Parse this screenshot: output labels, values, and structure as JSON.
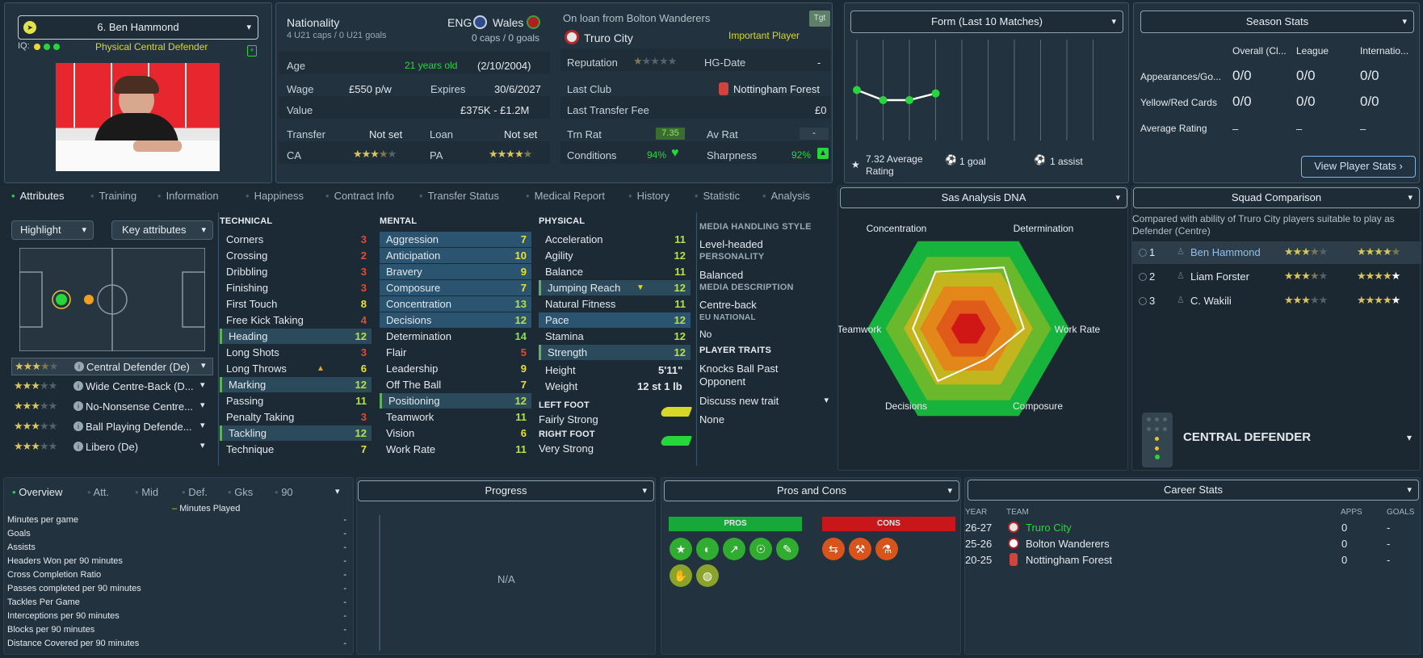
{
  "player": {
    "name": "6. Ben Hammond",
    "role": "Physical Central Defender",
    "iq_label": "IQ:"
  },
  "nationality": {
    "label": "Nationality",
    "caps_u21": "4 U21 caps / 0 U21 goals",
    "country1": "ENG",
    "country2": "Wales",
    "caps": "0 caps / 0 goals"
  },
  "loan": {
    "text": "On loan from Bolton Wanderers",
    "club": "Truro City",
    "tgt": "Tgt",
    "status": "Important Player"
  },
  "details": {
    "age_label": "Age",
    "age_value": "21 years old",
    "dob": "(2/10/2004)",
    "wage_label": "Wage",
    "wage_value": "£550 p/w",
    "expires_label": "Expires",
    "expires_value": "30/6/2027",
    "value_label": "Value",
    "value_value": "£375K - £1.2M",
    "transfer_label": "Transfer",
    "transfer_value": "Not set",
    "loan_label": "Loan",
    "loan_value": "Not set",
    "ca_label": "CA",
    "pa_label": "PA",
    "ca_stars": 3.5,
    "pa_stars": 4.5,
    "reputation_label": "Reputation",
    "reputation_stars": 0.5,
    "hg_label": "HG-Date",
    "hg_value": "-",
    "last_club_label": "Last Club",
    "last_club_value": "Nottingham Forest",
    "last_fee_label": "Last Transfer Fee",
    "last_fee_value": "£0",
    "trn_rat_label": "Trn Rat",
    "trn_rat_value": "7.35",
    "av_rat_label": "Av Rat",
    "av_rat_value": "-",
    "conditions_label": "Conditions",
    "conditions_value": "94%",
    "sharpness_label": "Sharpness",
    "sharpness_value": "92%"
  },
  "form": {
    "title": "Form (Last 10 Matches)",
    "avg": "7.32 Average Rating",
    "goals": "1 goal",
    "assists": "1 assist",
    "points": [
      7.5,
      7.2,
      7.2,
      7.4
    ]
  },
  "season": {
    "title": "Season Stats",
    "cols": [
      "Overall (Cl...",
      "League",
      "Internatio..."
    ],
    "rows": [
      {
        "label": "Appearances/Go...",
        "vals": [
          "0/0",
          "0/0",
          "0/0"
        ]
      },
      {
        "label": "Yellow/Red Cards",
        "vals": [
          "0/0",
          "0/0",
          "0/0"
        ]
      },
      {
        "label": "Average Rating",
        "vals": [
          "–",
          "–",
          "–"
        ]
      }
    ],
    "button": "View Player Stats"
  },
  "tabs": [
    "Attributes",
    "Training",
    "Information",
    "Happiness",
    "Contract Info",
    "Transfer Status",
    "Medical Report",
    "History",
    "Statistic",
    "Analysis"
  ],
  "highlight": "Highlight",
  "key_attributes": "Key attributes",
  "roles": [
    {
      "name": "Central Defender (De)",
      "stars": 3.5
    },
    {
      "name": "Wide Centre-Back (D...",
      "stars": 3
    },
    {
      "name": "No-Nonsense Centre...",
      "stars": 3
    },
    {
      "name": "Ball Playing Defende...",
      "stars": 3
    },
    {
      "name": "Libero (De)",
      "stars": 3
    }
  ],
  "technical": {
    "title": "TECHNICAL",
    "items": [
      {
        "n": "Corners",
        "v": "3"
      },
      {
        "n": "Crossing",
        "v": "2"
      },
      {
        "n": "Dribbling",
        "v": "3"
      },
      {
        "n": "Finishing",
        "v": "3"
      },
      {
        "n": "First Touch",
        "v": "8"
      },
      {
        "n": "Free Kick Taking",
        "v": "4"
      },
      {
        "n": "Heading",
        "v": "12"
      },
      {
        "n": "Long Shots",
        "v": "3"
      },
      {
        "n": "Long Throws",
        "v": "6"
      },
      {
        "n": "Marking",
        "v": "12"
      },
      {
        "n": "Passing",
        "v": "11"
      },
      {
        "n": "Penalty Taking",
        "v": "3"
      },
      {
        "n": "Tackling",
        "v": "12"
      },
      {
        "n": "Technique",
        "v": "7"
      }
    ]
  },
  "mental": {
    "title": "MENTAL",
    "items": [
      {
        "n": "Aggression",
        "v": "7"
      },
      {
        "n": "Anticipation",
        "v": "10"
      },
      {
        "n": "Bravery",
        "v": "9"
      },
      {
        "n": "Composure",
        "v": "7"
      },
      {
        "n": "Concentration",
        "v": "13"
      },
      {
        "n": "Decisions",
        "v": "12"
      },
      {
        "n": "Determination",
        "v": "14"
      },
      {
        "n": "Flair",
        "v": "5"
      },
      {
        "n": "Leadership",
        "v": "9"
      },
      {
        "n": "Off The Ball",
        "v": "7"
      },
      {
        "n": "Positioning",
        "v": "12"
      },
      {
        "n": "Teamwork",
        "v": "11"
      },
      {
        "n": "Vision",
        "v": "6"
      },
      {
        "n": "Work Rate",
        "v": "11"
      }
    ]
  },
  "physical": {
    "title": "PHYSICAL",
    "items": [
      {
        "n": "Acceleration",
        "v": "11"
      },
      {
        "n": "Agility",
        "v": "12"
      },
      {
        "n": "Balance",
        "v": "11"
      },
      {
        "n": "Jumping Reach",
        "v": "12"
      },
      {
        "n": "Natural Fitness",
        "v": "11"
      },
      {
        "n": "Pace",
        "v": "12"
      },
      {
        "n": "Stamina",
        "v": "12"
      },
      {
        "n": "Strength",
        "v": "12"
      }
    ],
    "height_label": "Height",
    "height_value": "5'11\"",
    "weight_label": "Weight",
    "weight_value": "12 st 1 lb",
    "left_foot_label": "LEFT FOOT",
    "left_foot_value": "Fairly Strong",
    "right_foot_label": "RIGHT FOOT",
    "right_foot_value": "Very Strong"
  },
  "media": {
    "handling_label": "MEDIA HANDLING STYLE",
    "handling_value": "Level-headed",
    "personality_label": "PERSONALITY",
    "personality_value": "Balanced",
    "desc_label": "MEDIA DESCRIPTION",
    "desc_value": "Centre-back",
    "eu_label": "EU NATIONAL",
    "eu_value": "No",
    "traits_label": "PLAYER TRAITS",
    "trait1": "Knocks Ball Past Opponent",
    "discuss": "Discuss new trait",
    "traits_none": "None"
  },
  "dna": {
    "title": "Sas Analysis DNA",
    "axes": [
      "Concentration",
      "Determination",
      "Work Rate",
      "Composure",
      "Decisions",
      "Teamwork"
    ],
    "values": [
      13,
      14,
      11,
      7,
      12,
      11
    ],
    "max": 20
  },
  "squad": {
    "title": "Squad Comparison",
    "subtitle": "Compared with ability of Truro City players suitable to play as Defender (Centre)",
    "rows": [
      {
        "rank": "1",
        "name": "Ben Hammond",
        "ca": 3.5,
        "pa": 4.5
      },
      {
        "rank": "2",
        "name": "Liam Forster",
        "ca": 3.5,
        "pa": 4
      },
      {
        "rank": "3",
        "name": "C. Wakili",
        "ca": 3,
        "pa": 4
      }
    ],
    "position": "CENTRAL DEFENDER"
  },
  "overview": {
    "tabs": [
      "Overview",
      "Att.",
      "Mid",
      "Def.",
      "Gks",
      "90"
    ],
    "legend": "Minutes Played",
    "rows": [
      {
        "n": "Minutes per game",
        "v": "-"
      },
      {
        "n": "Goals",
        "v": "-"
      },
      {
        "n": "Assists",
        "v": "-"
      },
      {
        "n": "Headers Won per 90 minutes",
        "v": "-"
      },
      {
        "n": "Cross Completion Ratio",
        "v": "-"
      },
      {
        "n": "Passes completed per 90 minutes",
        "v": "-"
      },
      {
        "n": "Tackles Per Game",
        "v": "-"
      },
      {
        "n": "Interceptions per 90 minutes",
        "v": "-"
      },
      {
        "n": "Blocks per 90 minutes",
        "v": "-"
      },
      {
        "n": "Distance Covered per 90 minutes",
        "v": "-"
      }
    ]
  },
  "progress": {
    "title": "Progress",
    "na": "N/A"
  },
  "pros_cons": {
    "title": "Pros and Cons",
    "pros": "PROS",
    "cons": "CONS"
  },
  "career": {
    "title": "Career Stats",
    "cols": [
      "YEAR",
      "TEAM",
      "APPS",
      "GOALS"
    ],
    "rows": [
      {
        "year": "26-27",
        "team": "Truro City",
        "apps": "0",
        "goals": "-"
      },
      {
        "year": "25-26",
        "team": "Bolton Wanderers",
        "apps": "0",
        "goals": "-"
      },
      {
        "year": "20-25",
        "team": "Nottingham Forest",
        "apps": "0",
        "goals": "-"
      }
    ]
  },
  "colors": {
    "accent": "#27d63a",
    "yellow": "#d8d829",
    "panel": "#22323e"
  }
}
